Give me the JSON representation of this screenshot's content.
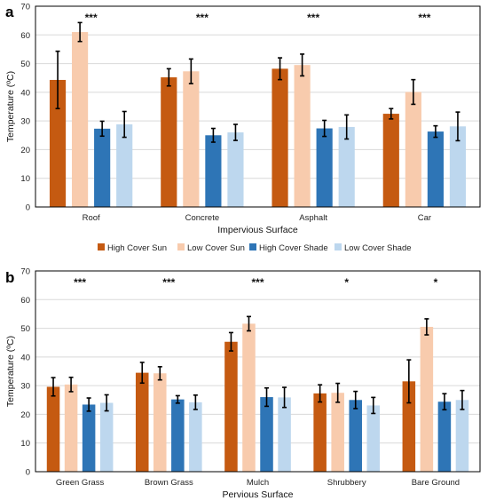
{
  "chart_data": [
    {
      "panel": "a",
      "type": "bar",
      "xlabel": "Impervious Surface",
      "ylabel": "Temperature (ºC)",
      "ylim": [
        0,
        70
      ],
      "yticks": [
        0,
        10,
        20,
        30,
        40,
        50,
        60,
        70
      ],
      "grid": true,
      "categories": [
        "Roof",
        "Concrete",
        "Asphalt",
        "Car"
      ],
      "significance": [
        "***",
        "***",
        "***",
        "***"
      ],
      "series": [
        {
          "name": "High Cover Sun",
          "color": "#c55a11",
          "values": [
            44.3,
            45.2,
            48.2,
            32.5
          ],
          "errors": [
            10.0,
            3.0,
            3.8,
            1.8
          ]
        },
        {
          "name": "Low Cover Sun",
          "color": "#f8cbad",
          "values": [
            61.0,
            47.3,
            49.5,
            40.1
          ],
          "errors": [
            3.3,
            4.3,
            3.8,
            4.3
          ]
        },
        {
          "name": "High Cover Shade",
          "color": "#2e75b6",
          "values": [
            27.3,
            25.0,
            27.4,
            26.3
          ],
          "errors": [
            2.6,
            2.4,
            2.8,
            2.0
          ]
        },
        {
          "name": "Low Cover Shade",
          "color": "#bdd7ee",
          "values": [
            28.8,
            26.0,
            27.9,
            28.1
          ],
          "errors": [
            4.5,
            2.8,
            4.2,
            5.0
          ]
        }
      ]
    },
    {
      "panel": "b",
      "type": "bar",
      "xlabel": "Pervious Surface",
      "ylabel": "Temperature (ºC)",
      "ylim": [
        0,
        70
      ],
      "yticks": [
        0,
        10,
        20,
        30,
        40,
        50,
        60,
        70
      ],
      "grid": true,
      "categories": [
        "Green Grass",
        "Brown Grass",
        "Mulch",
        "Shrubbery",
        "Bare Ground"
      ],
      "significance": [
        "***",
        "***",
        "***",
        "*",
        "*"
      ],
      "series": [
        {
          "name": "High Cover Sun",
          "color": "#c55a11",
          "values": [
            29.6,
            34.5,
            45.3,
            27.3,
            31.5
          ],
          "errors": [
            3.2,
            3.6,
            3.2,
            3.0,
            7.5
          ]
        },
        {
          "name": "Low Cover Sun",
          "color": "#f8cbad",
          "values": [
            30.4,
            34.3,
            51.6,
            27.5,
            50.5
          ],
          "errors": [
            2.5,
            2.3,
            2.5,
            3.3,
            2.8
          ]
        },
        {
          "name": "High Cover Shade",
          "color": "#2e75b6",
          "values": [
            23.4,
            25.2,
            26.0,
            25.0,
            24.4
          ],
          "errors": [
            2.3,
            1.3,
            3.2,
            3.0,
            2.8
          ]
        },
        {
          "name": "Low Cover Shade",
          "color": "#bdd7ee",
          "values": [
            24.0,
            24.2,
            25.9,
            23.1,
            25.0
          ],
          "errors": [
            2.8,
            2.5,
            3.5,
            2.8,
            3.3
          ]
        }
      ]
    }
  ],
  "legend": {
    "placement": "between panels",
    "items": [
      "High Cover Sun",
      "Low Cover Sun",
      "High Cover Shade",
      "Low Cover Shade"
    ]
  }
}
